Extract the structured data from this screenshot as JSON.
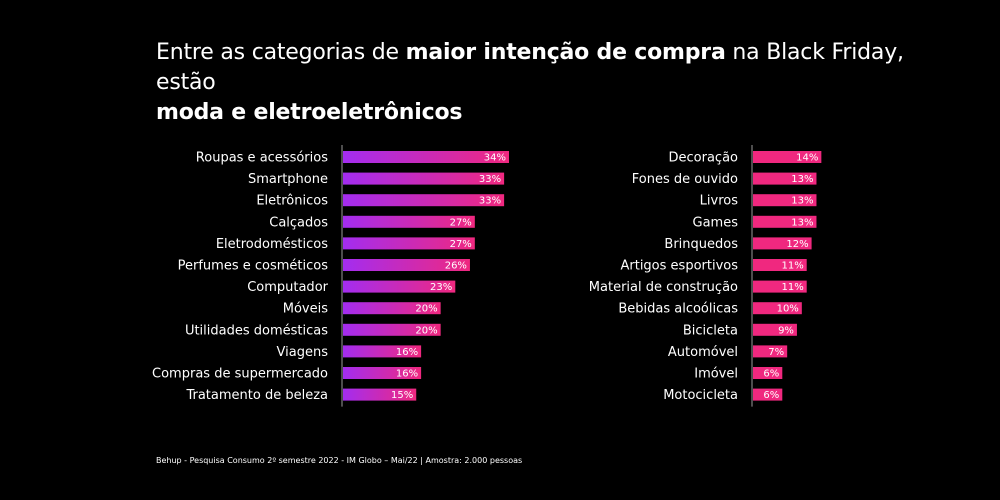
{
  "title": {
    "part1": "Entre as categorias de ",
    "bold1": "maior intenção de compra",
    "part2": " na Black Friday, estão ",
    "bold2": "moda e eletroeletrônicos"
  },
  "footnote": "Behup - Pesquisa Consumo 2º semestre 2022 - IM Globo – Mai/22 | Amostra: 2.000 pessoas",
  "colors": {
    "left_gradient_start": "#a32df0",
    "left_gradient_end": "#f0287f",
    "right_bar": "#f0287f",
    "axis": "#9a9a9a"
  },
  "chart_data": [
    {
      "type": "bar",
      "orientation": "horizontal",
      "categories": [
        "Roupas e acessórios",
        "Smartphone",
        "Eletrônicos",
        "Calçados",
        "Eletrodomésticos",
        "Perfumes e cosméticos",
        "Computador",
        "Móveis",
        "Utilidades domésticas",
        "Viagens",
        "Compras de supermercado",
        "Tratamento de beleza"
      ],
      "values": [
        34,
        33,
        33,
        27,
        27,
        26,
        23,
        20,
        20,
        16,
        16,
        15
      ],
      "value_labels": [
        "34%",
        "33%",
        "33%",
        "27%",
        "27%",
        "26%",
        "23%",
        "20%",
        "20%",
        "16%",
        "16%",
        "15%"
      ],
      "unit": "%",
      "xlim": [
        0,
        34
      ],
      "grid": false
    },
    {
      "type": "bar",
      "orientation": "horizontal",
      "categories": [
        "Decoração",
        "Fones de ouvido",
        "Livros",
        "Games",
        "Brinquedos",
        "Artigos esportivos",
        "Material de construção",
        "Bebidas alcoólicas",
        "Bicicleta",
        "Automóvel",
        "Imóvel",
        "Motocicleta"
      ],
      "values": [
        14,
        13,
        13,
        13,
        12,
        11,
        11,
        10,
        9,
        7,
        6,
        6
      ],
      "value_labels": [
        "14%",
        "13%",
        "13%",
        "13%",
        "12%",
        "11%",
        "11%",
        "10%",
        "9%",
        "7%",
        "6%",
        "6%"
      ],
      "unit": "%",
      "xlim": [
        0,
        34
      ],
      "grid": false
    }
  ]
}
